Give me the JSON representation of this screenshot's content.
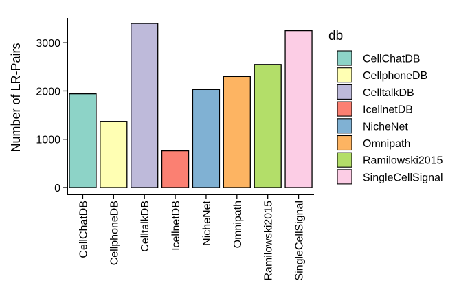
{
  "chart_data": {
    "type": "bar",
    "title": "",
    "xlabel": "",
    "ylabel": "Number of LR-Pairs",
    "ylim": [
      0,
      3600
    ],
    "yticks": [
      0,
      1000,
      2000,
      3000
    ],
    "grid": false,
    "legend_position": "right",
    "legend_title": "db",
    "categories": [
      "CellChatDB",
      "CellphoneDB",
      "CelltalkDB",
      "IcellnetDB",
      "NicheNet",
      "Omnipath",
      "Ramilowski2015",
      "SingleCellSignal"
    ],
    "values": [
      1940,
      1370,
      3400,
      760,
      2030,
      2300,
      2550,
      3250
    ],
    "colors": [
      "#8DD3C7",
      "#FFFFB3",
      "#BEBADA",
      "#FB8072",
      "#80B1D3",
      "#FDB462",
      "#B3DE69",
      "#FCCDE5"
    ]
  }
}
